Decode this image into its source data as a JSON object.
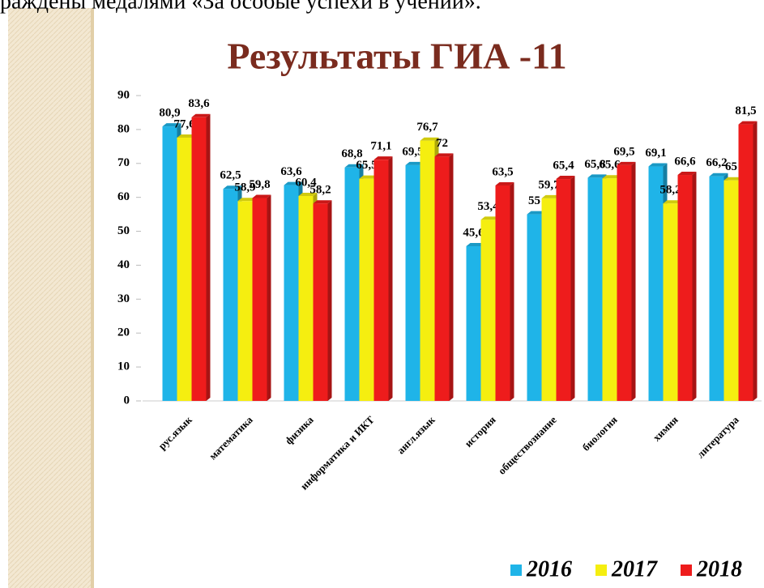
{
  "page_text": "раждены медалями «За особые успехи в учении».",
  "chart_data": {
    "type": "bar",
    "title": "Результаты ГИА -11",
    "categories": [
      "рус.язык",
      "математика",
      "физика",
      "информатика и ИКТ",
      "англ.язык",
      "история",
      "обществознание",
      "биология",
      "химия",
      "литература"
    ],
    "series": [
      {
        "name": "2016",
        "color": "#1fb4e8",
        "values": [
          80.9,
          62.5,
          63.6,
          68.8,
          69.5,
          45.6,
          55,
          65.8,
          69.1,
          66.2
        ],
        "value_labels": [
          "80,9",
          "62,5",
          "63,6",
          "68,8",
          "69,5",
          "45,6",
          "55",
          "65,8",
          "69,1",
          "66,2"
        ]
      },
      {
        "name": "2017",
        "color": "#f5ee10",
        "values": [
          77.6,
          58.9,
          60.4,
          65.5,
          76.7,
          53.4,
          59.7,
          65.6,
          58.2,
          65
        ],
        "value_labels": [
          "77,6",
          "58,9",
          "60,4",
          "65,5",
          "76,7",
          "53,4",
          "59,7",
          "65,6",
          "58,2",
          "65"
        ]
      },
      {
        "name": "2018",
        "color": "#ee1c1c",
        "values": [
          83.6,
          59.8,
          58.2,
          71.1,
          72,
          63.5,
          65.4,
          69.5,
          66.6,
          81.5
        ],
        "value_labels": [
          "83,6",
          "59,8",
          "58,2",
          "71,1",
          "72",
          "63,5",
          "65,4",
          "69,5",
          "66,6",
          "81,5"
        ]
      }
    ],
    "ylim": [
      0,
      90
    ],
    "yticks": [
      0,
      10,
      20,
      30,
      40,
      50,
      60,
      70,
      80,
      90
    ],
    "legend": "bottom-right"
  }
}
